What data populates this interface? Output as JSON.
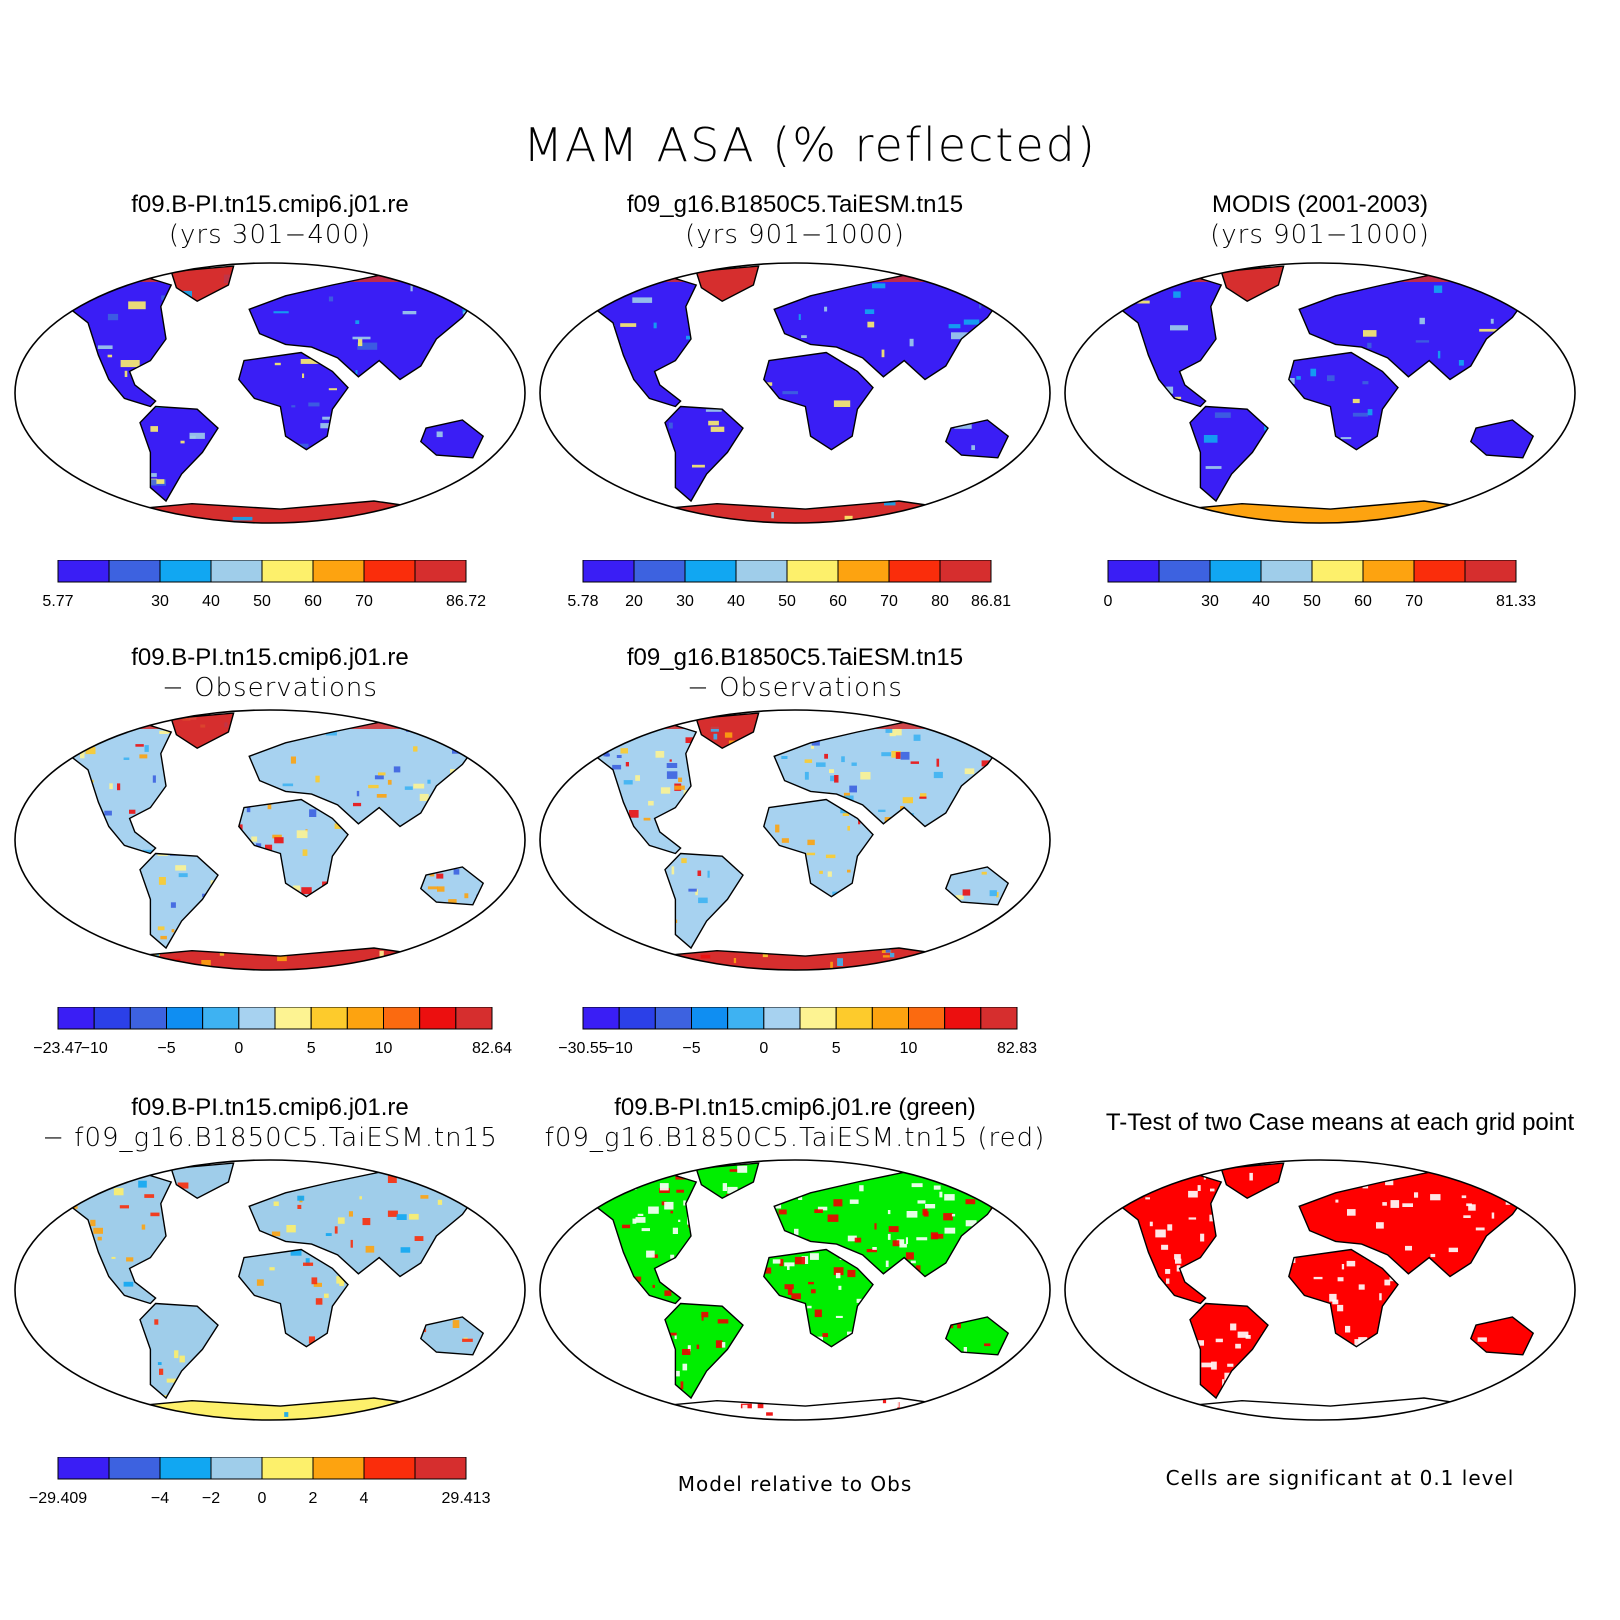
{
  "title": "MAM ASA (% reflected)",
  "colors": {
    "abs8": [
      "#3a1ef5",
      "#3d62e0",
      "#11a7f2",
      "#9fcdea",
      "#fdf06b",
      "#fda310",
      "#fa2d0b",
      "#d62e2e"
    ],
    "diff12": [
      "#3a1ef5",
      "#2b40e8",
      "#3d62e0",
      "#0f8ef2",
      "#3eb2f2",
      "#a7d2f0",
      "#fdf392",
      "#fdcb2c",
      "#fda310",
      "#fb6a10",
      "#ec0f0f",
      "#d62e2e"
    ],
    "diff8": [
      "#3a1ef5",
      "#3d62e0",
      "#11a7f2",
      "#9fcdea",
      "#fdf06b",
      "#fda310",
      "#fa2d0b",
      "#d62e2e"
    ],
    "ocean": "#ffffff",
    "coast": "#000000",
    "green_case": "#00ee00",
    "red_case": "#ee0000",
    "significant": "#ff0000"
  },
  "panels": [
    {
      "line1": "f09.B-PI.tn15.cmip6.j01.re",
      "line2": "(yrs 301−400)",
      "fill": "abs",
      "antarctica": "#d62e2e"
    },
    {
      "line1": "f09_g16.B1850C5.TaiESM.tn15",
      "line2": "(yrs 901−1000)",
      "fill": "abs",
      "antarctica": "#d62e2e"
    },
    {
      "line1": "MODIS (2001-2003)",
      "line2": "(yrs 901−1000)",
      "fill": "abs",
      "antarctica": "#fda310"
    },
    {
      "line1": "f09.B-PI.tn15.cmip6.j01.re",
      "line2": "− Observations",
      "fill": "diff",
      "antarctica": "#d62e2e"
    },
    {
      "line1": "f09_g16.B1850C5.TaiESM.tn15",
      "line2": "− Observations",
      "fill": "diff",
      "antarctica": "#d62e2e"
    },
    {
      "line1": "f09.B-PI.tn15.cmip6.j01.re",
      "line2": "− f09_g16.B1850C5.TaiESM.tn15",
      "fill": "diff2",
      "antarctica": "#fdf06b"
    },
    {
      "line1": "f09.B-PI.tn15.cmip6.j01.re (green)",
      "line2": "f09_g16.B1850C5.TaiESM.tn15 (red)",
      "fill": "greenred",
      "antarctica": "#ffffff"
    },
    {
      "line1": "T-Test of two Case means at each grid point",
      "line2": "",
      "fill": "ttest",
      "antarctica": "#ffffff"
    }
  ],
  "colorbars": [
    {
      "labels": [
        "5.77",
        "",
        "30",
        "40",
        "50",
        "60",
        "70",
        "",
        "86.72"
      ]
    },
    {
      "labels": [
        "5.78",
        "20",
        "30",
        "40",
        "50",
        "60",
        "70",
        "80",
        "86.81"
      ]
    },
    {
      "labels": [
        "0",
        "",
        "30",
        "40",
        "50",
        "60",
        "70",
        "",
        "81.33"
      ]
    },
    {
      "labels": [
        "−23.47",
        "−10",
        "",
        "−5",
        "",
        "0",
        "",
        "5",
        "",
        "10",
        "",
        "",
        "82.64"
      ]
    },
    {
      "labels": [
        "−30.55",
        "−10",
        "",
        "−5",
        "",
        "0",
        "",
        "5",
        "",
        "10",
        "",
        "",
        "82.83"
      ]
    },
    {
      "labels": [
        "−29.409",
        "",
        "−4",
        "−2",
        "0",
        "2",
        "4",
        "",
        "29.413"
      ]
    }
  ],
  "notes": {
    "model_relative": "Model relative to Obs",
    "significance": "Cells are significant at 0.1 level"
  }
}
